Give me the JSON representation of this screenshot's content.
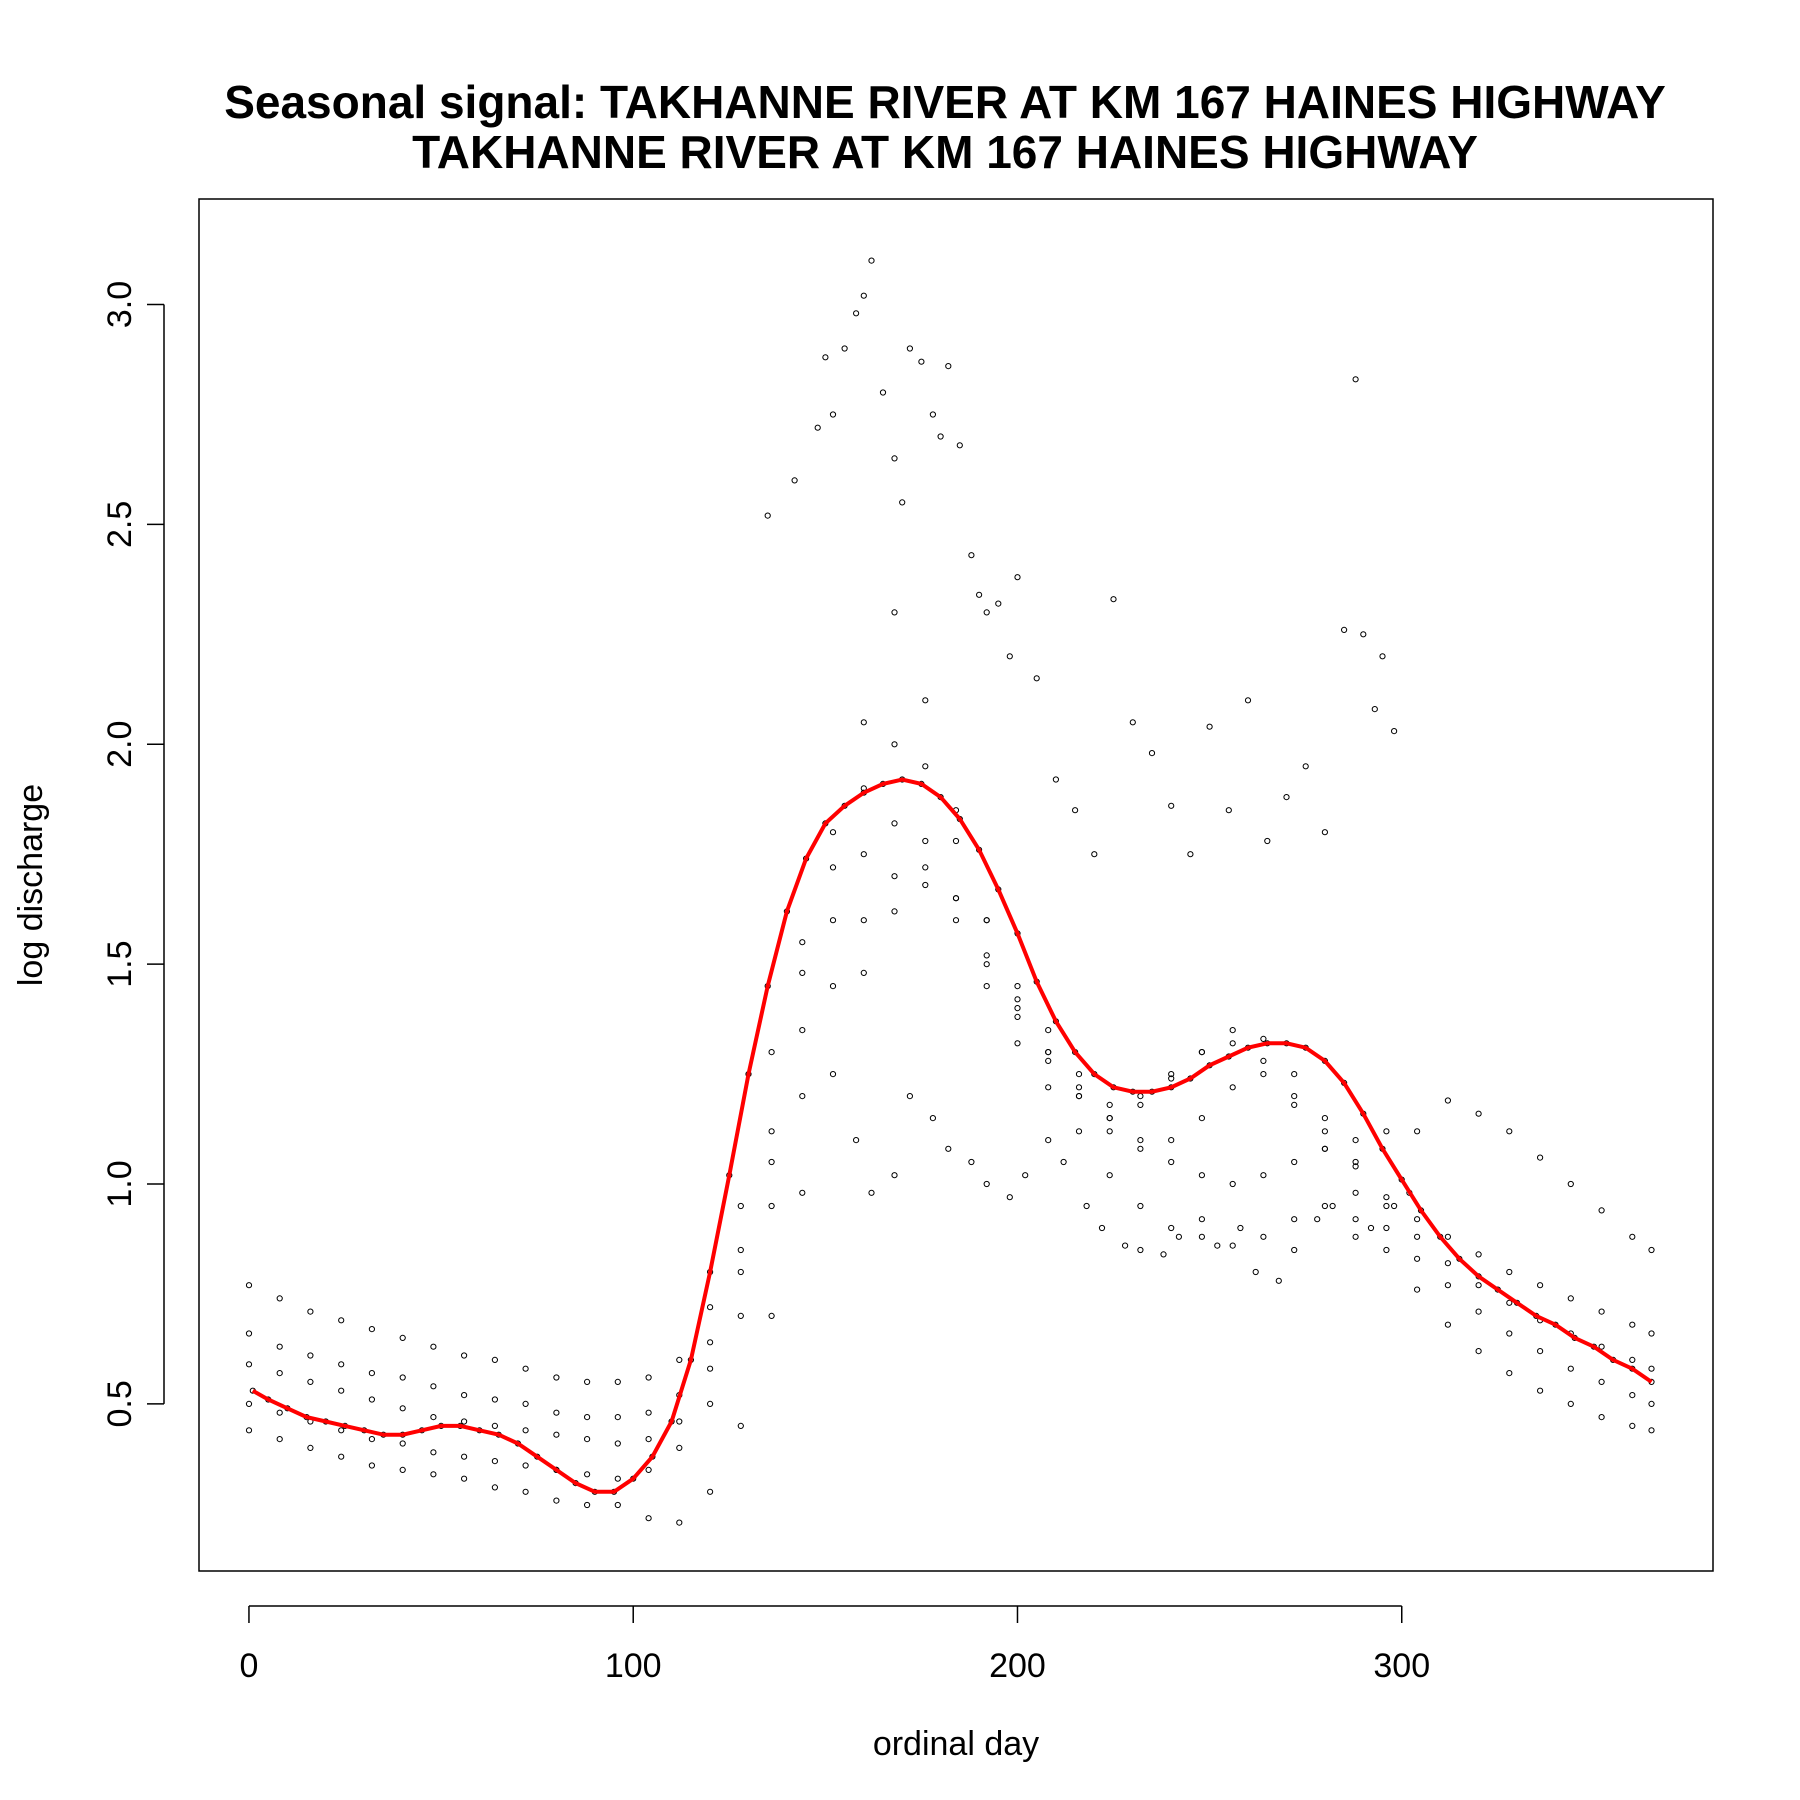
{
  "chart_data": {
    "type": "scatter",
    "title": "Seasonal signal: TAKHANNE RIVER AT KM 167 HAINES HIGHWAY",
    "subtitle": "TAKHANNE RIVER AT KM 167 HAINES HIGHWAY",
    "xlabel": "ordinal day",
    "ylabel": "log discharge",
    "xlim": [
      -13,
      381
    ],
    "ylim": [
      0.12,
      3.24
    ],
    "x_ticks": [
      0,
      100,
      200,
      300
    ],
    "y_ticks": [
      0.5,
      1.0,
      1.5,
      2.0,
      2.5,
      3.0
    ],
    "x_tick_labels": [
      "0",
      "100",
      "200",
      "300"
    ],
    "y_tick_labels": [
      "0.5",
      "1.0",
      "1.5",
      "2.0",
      "2.5",
      "3.0"
    ],
    "grid": false,
    "legend": "none",
    "point_color": "#000000",
    "series": [
      {
        "kind": "points",
        "x": [
          1,
          5,
          10,
          15,
          20,
          25,
          30,
          35,
          40,
          45,
          50,
          55,
          60,
          65,
          70,
          75,
          80,
          85,
          90,
          95,
          100,
          105,
          110,
          115,
          120,
          125,
          130,
          135,
          140,
          145,
          150,
          155,
          160,
          165,
          170,
          175,
          180,
          185,
          190,
          195,
          200,
          205,
          210,
          215,
          220,
          225,
          230,
          235,
          240,
          245,
          250,
          255,
          260,
          265,
          270,
          275,
          280,
          285,
          290,
          295,
          300,
          305,
          310,
          315,
          320,
          325,
          330,
          335,
          340,
          345,
          350,
          355,
          360,
          365
        ],
        "y": [
          0.53,
          0.51,
          0.49,
          0.47,
          0.46,
          0.45,
          0.44,
          0.43,
          0.43,
          0.44,
          0.45,
          0.45,
          0.44,
          0.43,
          0.41,
          0.38,
          0.35,
          0.32,
          0.3,
          0.3,
          0.33,
          0.38,
          0.46,
          0.6,
          0.8,
          1.02,
          1.25,
          1.45,
          1.62,
          1.74,
          1.82,
          1.86,
          1.89,
          1.91,
          1.92,
          1.91,
          1.88,
          1.83,
          1.76,
          1.67,
          1.57,
          1.46,
          1.37,
          1.3,
          1.25,
          1.22,
          1.21,
          1.21,
          1.22,
          1.24,
          1.27,
          1.29,
          1.31,
          1.32,
          1.32,
          1.31,
          1.28,
          1.23,
          1.16,
          1.08,
          1.01,
          0.94,
          0.88,
          0.83,
          0.79,
          0.76,
          0.73,
          0.7,
          0.68,
          0.65,
          0.63,
          0.6,
          0.58,
          0.55
        ]
      },
      {
        "kind": "points",
        "x": [
          0,
          8,
          16,
          24,
          32,
          40,
          48,
          56,
          64,
          72,
          80,
          88,
          96,
          104,
          112,
          120,
          128,
          136,
          144,
          152,
          160,
          168,
          176,
          184,
          192,
          200,
          208,
          216,
          224,
          232,
          240,
          248,
          256,
          264,
          272,
          280,
          288,
          296,
          304,
          312,
          320,
          328,
          336,
          344,
          352,
          360,
          365
        ],
        "y": [
          0.77,
          0.74,
          0.71,
          0.69,
          0.67,
          0.65,
          0.63,
          0.61,
          0.6,
          0.58,
          0.56,
          0.55,
          0.55,
          0.56,
          0.6,
          0.72,
          0.95,
          1.3,
          1.55,
          1.8,
          2.05,
          2.3,
          2.1,
          1.85,
          1.6,
          1.45,
          1.35,
          1.25,
          1.15,
          1.1,
          1.05,
          1.02,
          1.0,
          1.02,
          1.05,
          1.08,
          1.1,
          1.12,
          1.12,
          1.19,
          1.16,
          1.12,
          1.06,
          1.0,
          0.94,
          0.88,
          0.85
        ]
      },
      {
        "kind": "points",
        "x": [
          0,
          8,
          16,
          24,
          32,
          40,
          48,
          56,
          64,
          72,
          80,
          88,
          96,
          104,
          112,
          120,
          128,
          136,
          144,
          152,
          160,
          168,
          176,
          184,
          192,
          200,
          208,
          216,
          224,
          232,
          240,
          248,
          256,
          264,
          272,
          280,
          288,
          296,
          304,
          312,
          320,
          328,
          336,
          344,
          352,
          360,
          365
        ],
        "y": [
          0.66,
          0.63,
          0.61,
          0.59,
          0.57,
          0.56,
          0.54,
          0.52,
          0.51,
          0.5,
          0.48,
          0.47,
          0.47,
          0.48,
          0.52,
          0.64,
          0.85,
          1.12,
          1.48,
          1.72,
          1.9,
          2.0,
          1.95,
          1.78,
          1.6,
          1.42,
          1.3,
          1.2,
          1.12,
          1.08,
          1.1,
          1.15,
          1.22,
          1.25,
          1.2,
          1.12,
          1.04,
          0.97,
          0.92,
          0.88,
          0.84,
          0.8,
          0.77,
          0.74,
          0.71,
          0.68,
          0.66
        ]
      },
      {
        "kind": "points",
        "x": [
          0,
          8,
          16,
          24,
          32,
          40,
          48,
          56,
          64,
          72,
          80,
          88,
          96,
          104,
          112,
          120,
          128,
          136,
          144,
          152,
          160,
          168,
          176,
          184,
          192,
          200,
          208,
          216,
          224,
          232,
          240,
          248,
          256,
          264,
          272,
          280,
          288,
          296,
          304,
          312,
          320,
          328,
          336,
          344,
          352,
          360,
          365
        ],
        "y": [
          0.59,
          0.57,
          0.55,
          0.53,
          0.51,
          0.49,
          0.47,
          0.46,
          0.45,
          0.44,
          0.43,
          0.42,
          0.41,
          0.42,
          0.46,
          0.58,
          0.8,
          1.05,
          1.35,
          1.6,
          1.75,
          1.82,
          1.78,
          1.65,
          1.5,
          1.38,
          1.28,
          1.2,
          1.15,
          1.18,
          1.24,
          1.3,
          1.35,
          1.33,
          1.25,
          1.15,
          1.05,
          0.95,
          0.88,
          0.82,
          0.77,
          0.73,
          0.69,
          0.66,
          0.63,
          0.6,
          0.58
        ]
      },
      {
        "kind": "points",
        "x": [
          0,
          8,
          16,
          24,
          32,
          40,
          48,
          56,
          64,
          72,
          80,
          88,
          96,
          104,
          112,
          120,
          128,
          136,
          144,
          152,
          160,
          168,
          176,
          184,
          192,
          200,
          208,
          216,
          224,
          232,
          240,
          248,
          256,
          264,
          272,
          280,
          288,
          296,
          304,
          312,
          320,
          328,
          336,
          344,
          352,
          360,
          365
        ],
        "y": [
          0.5,
          0.48,
          0.46,
          0.44,
          0.42,
          0.41,
          0.39,
          0.38,
          0.37,
          0.36,
          0.35,
          0.34,
          0.33,
          0.35,
          0.4,
          0.5,
          0.7,
          0.95,
          1.2,
          1.45,
          1.6,
          1.7,
          1.72,
          1.65,
          1.52,
          1.4,
          1.3,
          1.22,
          1.18,
          1.2,
          1.25,
          1.3,
          1.32,
          1.28,
          1.18,
          1.08,
          0.98,
          0.9,
          0.83,
          0.77,
          0.71,
          0.66,
          0.62,
          0.58,
          0.55,
          0.52,
          0.5
        ]
      },
      {
        "kind": "points",
        "x": [
          0,
          8,
          16,
          24,
          32,
          40,
          48,
          56,
          64,
          72,
          80,
          88,
          96,
          104,
          112,
          120,
          128,
          136,
          144,
          152,
          160,
          168,
          176,
          184,
          192,
          200,
          208,
          216,
          224,
          232,
          240,
          248,
          256,
          264,
          272,
          280,
          288,
          296,
          304,
          312,
          320,
          328,
          336,
          344,
          352,
          360,
          365
        ],
        "y": [
          0.44,
          0.42,
          0.4,
          0.38,
          0.36,
          0.35,
          0.34,
          0.33,
          0.31,
          0.3,
          0.28,
          0.27,
          0.27,
          0.24,
          0.23,
          0.3,
          0.45,
          0.7,
          0.98,
          1.25,
          1.48,
          1.62,
          1.68,
          1.6,
          1.45,
          1.32,
          1.22,
          1.12,
          1.02,
          0.95,
          0.9,
          0.88,
          0.86,
          0.88,
          0.92,
          0.95,
          0.92,
          0.85,
          0.76,
          0.68,
          0.62,
          0.57,
          0.53,
          0.5,
          0.47,
          0.45,
          0.44
        ]
      },
      {
        "kind": "points",
        "x": [
          135,
          142,
          148,
          150,
          152,
          155,
          158,
          160,
          162,
          165,
          168,
          170,
          172,
          175,
          178,
          180,
          182,
          185,
          188,
          190,
          192,
          195,
          198,
          200,
          205,
          210,
          215,
          220,
          225,
          230,
          235,
          240,
          245,
          250,
          255,
          260,
          265,
          270,
          275,
          280,
          285,
          288,
          290,
          293,
          295,
          298
        ],
        "y": [
          2.52,
          2.6,
          2.72,
          2.88,
          2.75,
          2.9,
          2.98,
          3.02,
          3.1,
          2.8,
          2.65,
          2.55,
          2.9,
          2.87,
          2.75,
          2.7,
          2.86,
          2.68,
          2.43,
          2.34,
          2.3,
          2.32,
          2.2,
          2.38,
          2.15,
          1.92,
          1.85,
          1.75,
          2.33,
          2.05,
          1.98,
          1.86,
          1.75,
          2.04,
          1.85,
          2.1,
          1.78,
          1.88,
          1.95,
          1.8,
          2.26,
          2.83,
          2.25,
          2.08,
          2.2,
          2.03
        ]
      },
      {
        "kind": "points",
        "x": [
          158,
          162,
          168,
          172,
          178,
          182,
          188,
          192,
          198,
          202,
          208,
          212,
          218,
          222,
          228,
          232,
          238,
          242,
          248,
          252,
          258,
          262,
          268,
          272,
          278,
          282,
          288,
          292,
          298,
          302
        ],
        "y": [
          1.1,
          0.98,
          1.02,
          1.2,
          1.15,
          1.08,
          1.05,
          1.0,
          0.97,
          1.02,
          1.1,
          1.05,
          0.95,
          0.9,
          0.86,
          0.85,
          0.84,
          0.88,
          0.92,
          0.86,
          0.9,
          0.8,
          0.78,
          0.85,
          0.92,
          0.95,
          0.88,
          0.9,
          0.95,
          0.98
        ]
      }
    ],
    "fit_line": {
      "color": "#ff0000",
      "x": [
        1,
        5,
        10,
        15,
        20,
        25,
        30,
        35,
        40,
        45,
        50,
        55,
        60,
        65,
        70,
        75,
        80,
        85,
        90,
        95,
        100,
        105,
        110,
        115,
        120,
        125,
        130,
        135,
        140,
        145,
        150,
        155,
        160,
        165,
        170,
        175,
        180,
        185,
        190,
        195,
        200,
        205,
        210,
        215,
        220,
        225,
        230,
        235,
        240,
        245,
        250,
        255,
        260,
        265,
        270,
        275,
        280,
        285,
        290,
        295,
        300,
        305,
        310,
        315,
        320,
        325,
        330,
        335,
        340,
        345,
        350,
        355,
        360,
        365
      ],
      "y": [
        0.53,
        0.51,
        0.49,
        0.47,
        0.46,
        0.45,
        0.44,
        0.43,
        0.43,
        0.44,
        0.45,
        0.45,
        0.44,
        0.43,
        0.41,
        0.38,
        0.35,
        0.32,
        0.3,
        0.3,
        0.33,
        0.38,
        0.46,
        0.6,
        0.8,
        1.02,
        1.25,
        1.45,
        1.62,
        1.74,
        1.82,
        1.86,
        1.89,
        1.91,
        1.92,
        1.91,
        1.88,
        1.83,
        1.76,
        1.67,
        1.57,
        1.46,
        1.37,
        1.3,
        1.25,
        1.22,
        1.21,
        1.21,
        1.22,
        1.24,
        1.27,
        1.29,
        1.31,
        1.32,
        1.32,
        1.31,
        1.28,
        1.23,
        1.16,
        1.08,
        1.01,
        0.94,
        0.88,
        0.83,
        0.79,
        0.76,
        0.73,
        0.7,
        0.68,
        0.65,
        0.63,
        0.6,
        0.58,
        0.55
      ]
    }
  }
}
